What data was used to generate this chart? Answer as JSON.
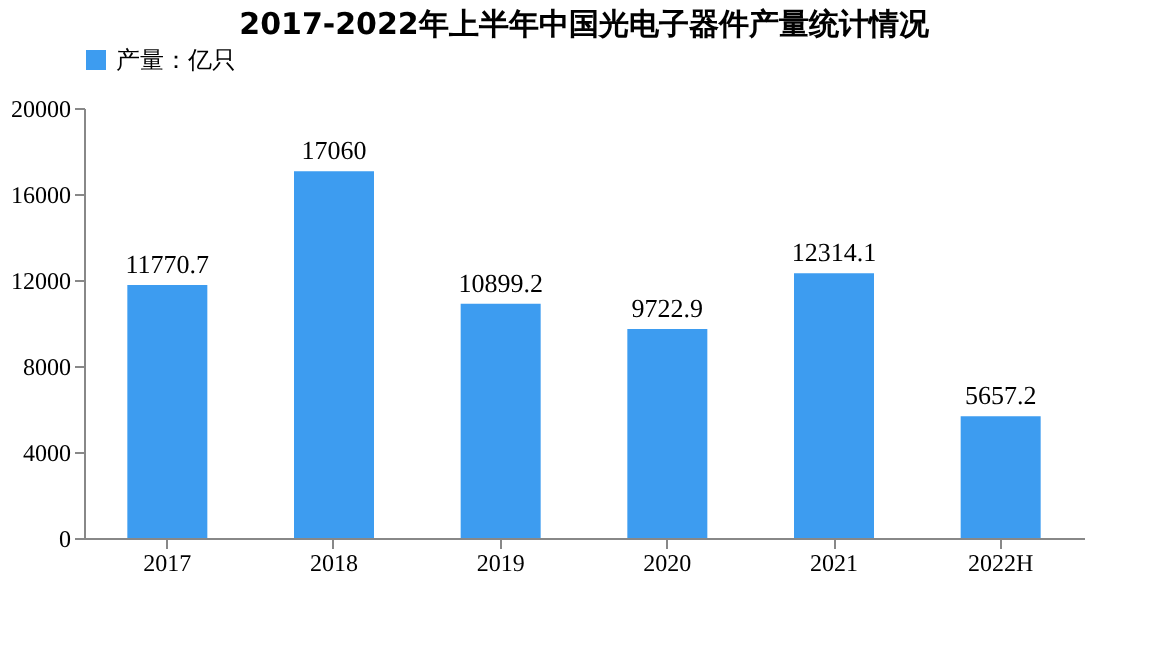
{
  "chart_data": {
    "type": "bar",
    "title": "2017-2022年上半年中国光电子器件产量统计情况",
    "categories": [
      "2017",
      "2018",
      "2019",
      "2020",
      "2021",
      "2022H"
    ],
    "series": [
      {
        "name": "产量：亿只",
        "color": "#3d9cf0",
        "values": [
          11770.7,
          17060,
          10899.2,
          9722.9,
          12314.1,
          5657.2
        ]
      }
    ],
    "ylim": [
      0,
      20000
    ],
    "yticks": [
      0,
      4000,
      8000,
      12000,
      16000,
      20000
    ],
    "grid": false,
    "legend": "top",
    "data_labels": true
  }
}
